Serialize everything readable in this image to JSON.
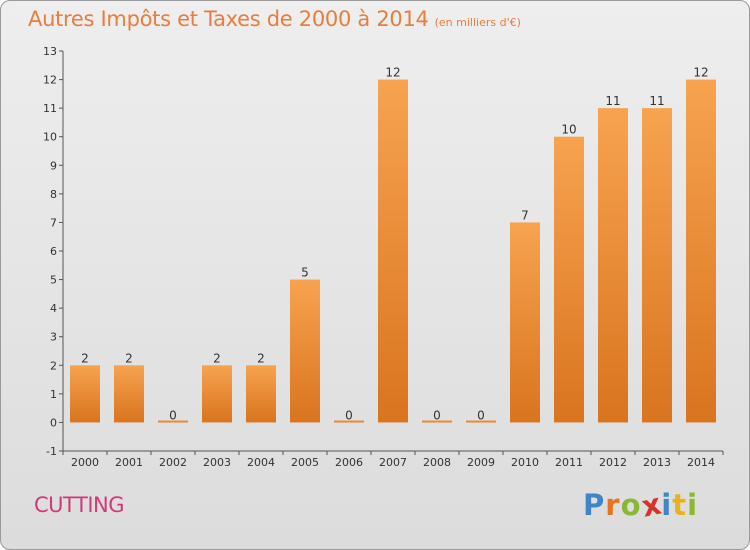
{
  "header": {
    "title": "Autres Impôts et Taxes de 2000 à 2014",
    "subtitle": "(en milliers d'€)"
  },
  "footer": {
    "city": "CUTTING",
    "logo_letters": [
      "P",
      "r",
      "o",
      "x",
      "i",
      "t",
      "i"
    ],
    "logo_colors": [
      "#3f86c6",
      "#e8731f",
      "#8ab832",
      "#d6342b",
      "#3f86c6",
      "#e8b21e",
      "#8ab832"
    ]
  },
  "chart_data": {
    "type": "bar",
    "title": "Autres Impôts et Taxes de 2000 à 2014",
    "subtitle": "(en milliers d'€)",
    "categories": [
      "2000",
      "2001",
      "2002",
      "2003",
      "2004",
      "2005",
      "2006",
      "2007",
      "2008",
      "2009",
      "2010",
      "2011",
      "2012",
      "2013",
      "2014"
    ],
    "values": [
      2,
      2,
      0,
      2,
      2,
      5,
      0,
      12,
      0,
      0,
      7,
      10,
      11,
      11,
      12
    ],
    "ylim": [
      -1,
      13
    ],
    "yticks": [
      "-1",
      "0",
      "1",
      "2",
      "3",
      "4",
      "5",
      "6",
      "7",
      "8",
      "9",
      "10",
      "11",
      "12",
      "13"
    ],
    "grid": false,
    "legend": "none",
    "bar_colors": [
      "#f7a350",
      "#d9741f"
    ]
  }
}
